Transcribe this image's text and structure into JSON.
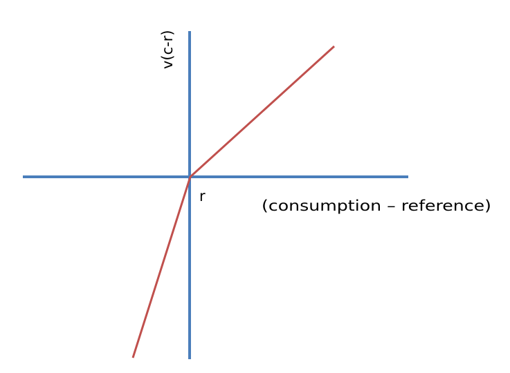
{
  "diagram": {
    "y_axis_label": "v(c-r)",
    "x_axis_label": "(consumption – reference)",
    "origin_label": "r",
    "colors": {
      "axes": "#4a7ebb",
      "value_function": "#c0504d",
      "text": "#000000",
      "background": "#ffffff"
    }
  }
}
